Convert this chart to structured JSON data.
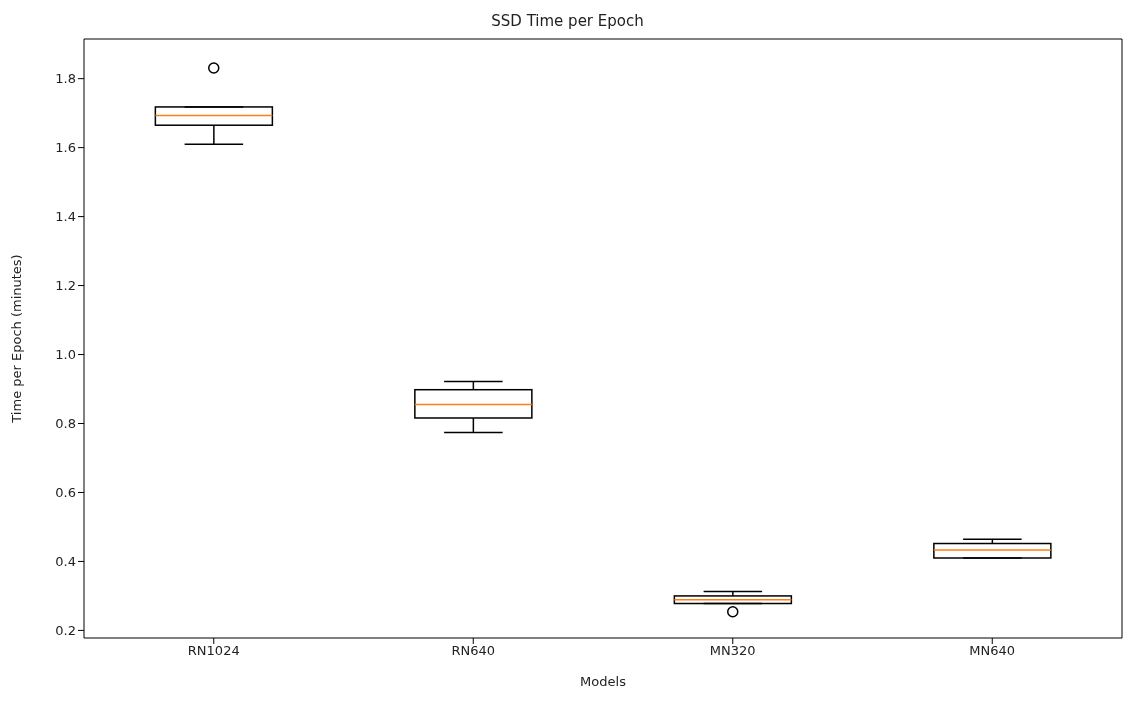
{
  "chart_data": {
    "type": "box",
    "title": "SSD Time per Epoch",
    "xlabel": "Models",
    "ylabel": "Time per Epoch (minutes)",
    "categories": [
      "RN1024",
      "RN640",
      "MN320",
      "MN640"
    ],
    "boxes": [
      {
        "low": 1.61,
        "q1": 1.665,
        "median": 1.693,
        "q3": 1.718,
        "high": 1.718,
        "outliers": [
          1.831
        ]
      },
      {
        "low": 0.774,
        "q1": 0.816,
        "median": 0.855,
        "q3": 0.898,
        "high": 0.922
      },
      {
        "low": 0.278,
        "q1": 0.278,
        "median": 0.289,
        "q3": 0.3,
        "high": 0.313,
        "outliers": [
          0.254
        ]
      },
      {
        "low": 0.41,
        "q1": 0.41,
        "median": 0.433,
        "q3": 0.452,
        "high": 0.464
      }
    ],
    "ylim": [
      0.178,
      1.915
    ],
    "yticks": [
      0.2,
      0.4,
      0.6,
      0.8,
      {
        "value": 1,
        "label": "1.0"
      },
      1.2,
      1.4,
      1.6,
      1.8
    ],
    "grid": false,
    "legend": false
  }
}
